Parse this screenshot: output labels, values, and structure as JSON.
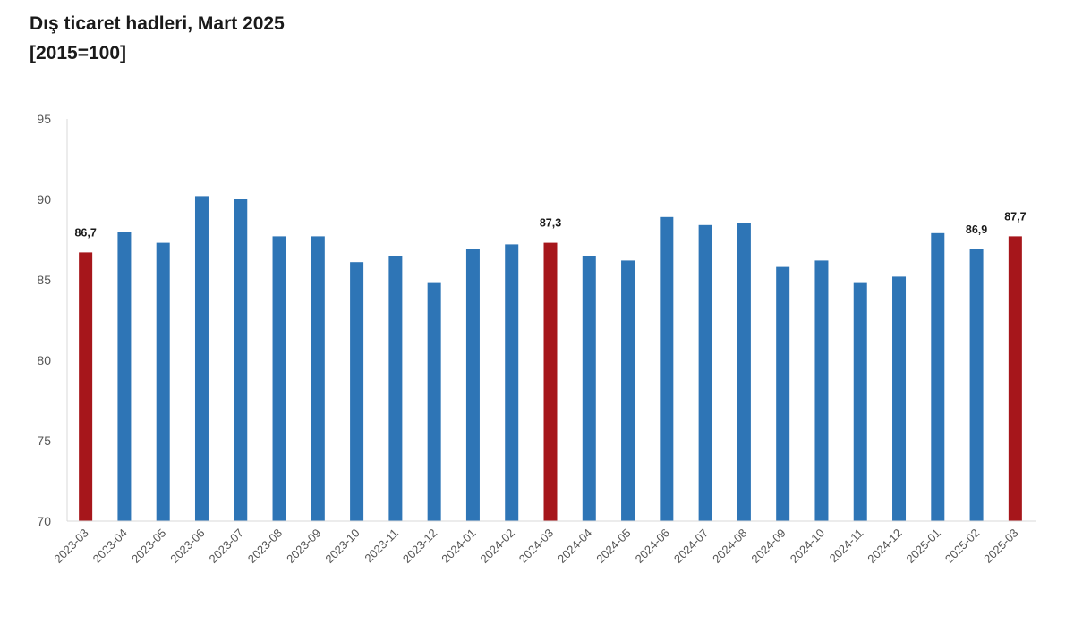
{
  "header": {
    "title": "Dış ticaret hadleri, Mart 2025",
    "subtitle": "[2015=100]"
  },
  "colors": {
    "default_bar": "#2e75b6",
    "highlight_bar": "#a6161b",
    "axis_line": "#d9d9d9"
  },
  "chart_data": {
    "type": "bar",
    "title": "Dış ticaret hadleri, Mart 2025",
    "subtitle": "[2015=100]",
    "categories": [
      "2023-03",
      "2023-04",
      "2023-05",
      "2023-06",
      "2023-07",
      "2023-08",
      "2023-09",
      "2023-10",
      "2023-11",
      "2023-12",
      "2024-01",
      "2024-02",
      "2024-03",
      "2024-04",
      "2024-05",
      "2024-06",
      "2024-07",
      "2024-08",
      "2024-09",
      "2024-10",
      "2024-11",
      "2024-12",
      "2025-01",
      "2025-02",
      "2025-03"
    ],
    "values": [
      86.7,
      88.0,
      87.3,
      90.2,
      90.0,
      87.7,
      87.7,
      86.1,
      86.5,
      84.8,
      86.9,
      87.2,
      87.3,
      86.5,
      86.2,
      88.9,
      88.4,
      88.5,
      85.8,
      86.2,
      84.8,
      85.2,
      87.9,
      86.9,
      87.7
    ],
    "highlighted": [
      "2023-03",
      "2024-03",
      "2025-03"
    ],
    "data_labels": [
      {
        "category": "2023-03",
        "text": "86,7"
      },
      {
        "category": "2024-03",
        "text": "87,3"
      },
      {
        "category": "2025-02",
        "text": "86,9"
      },
      {
        "category": "2025-03",
        "text": "87,7"
      }
    ],
    "yticks": [
      "70",
      "75",
      "80",
      "85",
      "90",
      "95"
    ],
    "ylim": [
      70,
      95
    ],
    "xlabel": "",
    "ylabel": "",
    "grid": false,
    "legend": "none"
  }
}
